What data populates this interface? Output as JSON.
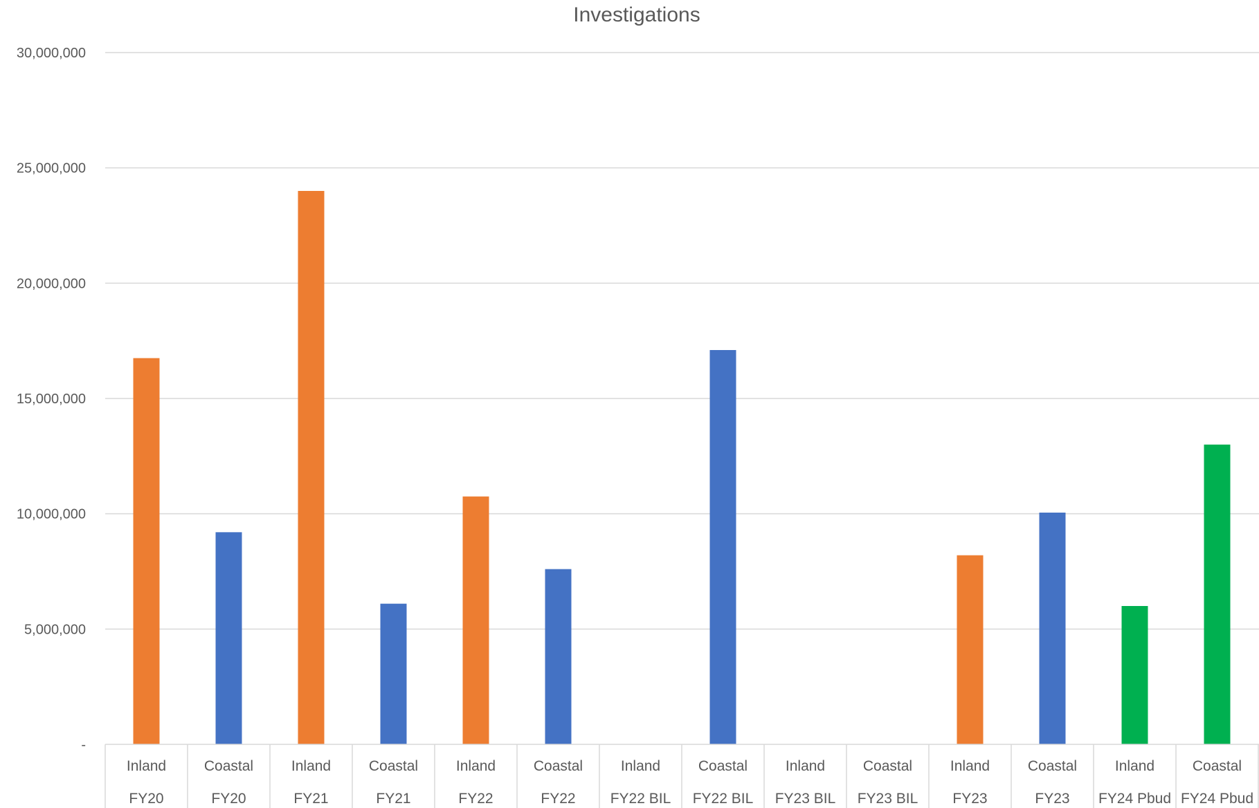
{
  "chart_data": {
    "type": "bar",
    "title": "Investigations",
    "xlabel": "",
    "ylabel": "",
    "ylim": [
      0,
      30000000
    ],
    "y_ticks": [
      0,
      5000000,
      10000000,
      15000000,
      20000000,
      25000000,
      30000000
    ],
    "y_tick_labels": [
      "-",
      "5,000,000",
      "10,000,000",
      "15,000,000",
      "20,000,000",
      "25,000,000",
      "30,000,000"
    ],
    "grid": true,
    "legend": "none",
    "categories": [
      {
        "level1": "Inland",
        "level2": "FY20"
      },
      {
        "level1": "Coastal",
        "level2": "FY20"
      },
      {
        "level1": "Inland",
        "level2": "FY21"
      },
      {
        "level1": "Coastal",
        "level2": "FY21"
      },
      {
        "level1": "Inland",
        "level2": "FY22"
      },
      {
        "level1": "Coastal",
        "level2": "FY22"
      },
      {
        "level1": "Inland",
        "level2": "FY22 BIL"
      },
      {
        "level1": "Coastal",
        "level2": "FY22 BIL"
      },
      {
        "level1": "Inland",
        "level2": "FY23 BIL"
      },
      {
        "level1": "Coastal",
        "level2": "FY23 BIL"
      },
      {
        "level1": "Inland",
        "level2": "FY23"
      },
      {
        "level1": "Coastal",
        "level2": "FY23"
      },
      {
        "level1": "Inland",
        "level2": "FY24 Pbud"
      },
      {
        "level1": "Coastal",
        "level2": "FY24 Pbud"
      }
    ],
    "values": [
      16750000,
      9200000,
      24000000,
      6100000,
      10750000,
      7600000,
      0,
      17100000,
      0,
      0,
      8200000,
      10050000,
      6000000,
      13000000
    ],
    "bar_colors": [
      "#ED7D31",
      "#4472C4",
      "#ED7D31",
      "#4472C4",
      "#ED7D31",
      "#4472C4",
      "#ED7D31",
      "#4472C4",
      "#ED7D31",
      "#4472C4",
      "#ED7D31",
      "#4472C4",
      "#00B050",
      "#00B050"
    ]
  }
}
